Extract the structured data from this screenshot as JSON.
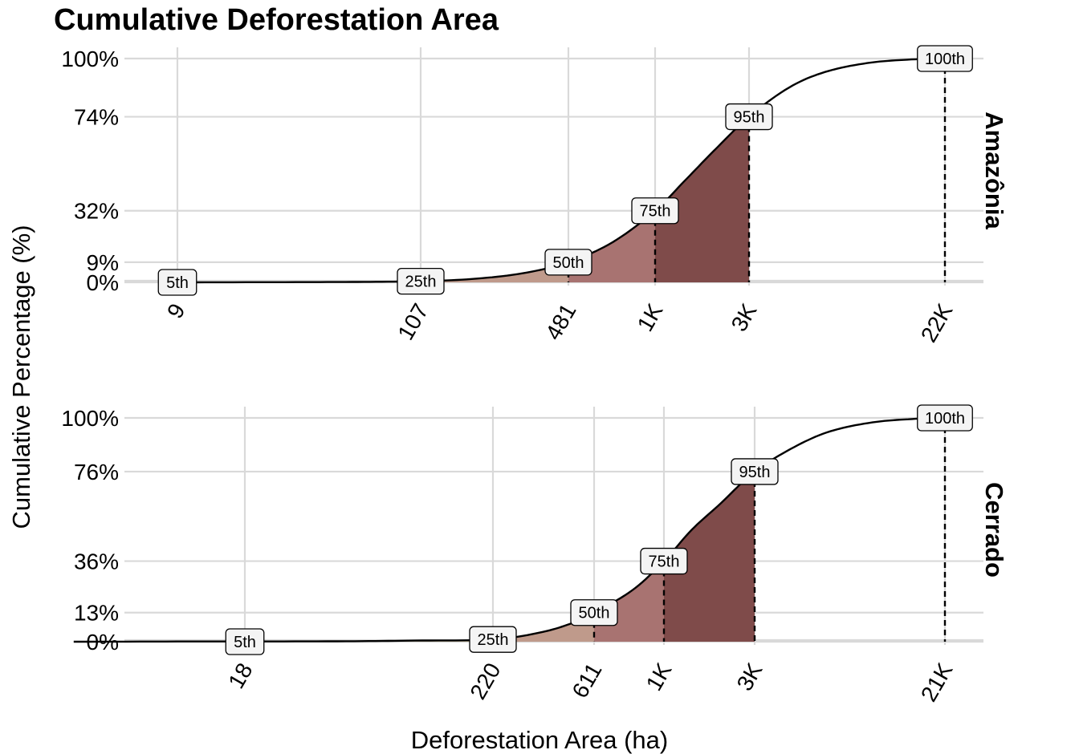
{
  "chart_data": {
    "type": "area",
    "title": "Cumulative Deforestation Area",
    "xlabel": "Deforestation Area (ha)",
    "ylabel": "Cumulative Percentage (%)",
    "x_scale": "log",
    "grid": true,
    "legend": "none",
    "colors": {
      "band_25_50": "#c9bc96",
      "band_50_75": "#bf9a8b",
      "band_75_95": "#a87371",
      "band_95_100": "#7f4b4a",
      "curve": "#000000",
      "label_fill": "#f4f4f4"
    },
    "panels": [
      {
        "name": "Amazônia",
        "x_ticks": [
          9,
          107,
          481,
          1000,
          3000,
          22000
        ],
        "x_tick_labels": [
          "9",
          "107",
          "481",
          "1K",
          "3K",
          "22K"
        ],
        "y_ticks": [
          0,
          9,
          32,
          74,
          100
        ],
        "y_tick_labels": [
          "0%",
          "9%",
          "32%",
          "74%",
          "100%"
        ],
        "percentiles": [
          {
            "label": "5th",
            "x": 9,
            "y": 0
          },
          {
            "label": "25th",
            "x": 107,
            "y": 0.5
          },
          {
            "label": "50th",
            "x": 481,
            "y": 9
          },
          {
            "label": "75th",
            "x": 1000,
            "y": 32
          },
          {
            "label": "95th",
            "x": 3000,
            "y": 74
          },
          {
            "label": "100th",
            "x": 22000,
            "y": 100
          }
        ],
        "curve": [
          [
            9,
            0
          ],
          [
            30,
            0.1
          ],
          [
            60,
            0.2
          ],
          [
            107,
            0.5
          ],
          [
            180,
            1.5
          ],
          [
            300,
            4
          ],
          [
            481,
            9
          ],
          [
            700,
            18
          ],
          [
            1000,
            32
          ],
          [
            1400,
            45
          ],
          [
            2000,
            59
          ],
          [
            3000,
            74
          ],
          [
            4500,
            87
          ],
          [
            6500,
            94
          ],
          [
            10000,
            98
          ],
          [
            15000,
            99.5
          ],
          [
            22000,
            100
          ]
        ]
      },
      {
        "name": "Cerrado",
        "x_ticks": [
          18,
          220,
          611,
          1000,
          3000,
          21000
        ],
        "x_tick_labels": [
          "18",
          "220",
          "611",
          "1K",
          "3K",
          "21K"
        ],
        "y_ticks": [
          0,
          13,
          36,
          76,
          100
        ],
        "y_tick_labels": [
          "0%",
          "13%",
          "36%",
          "76%",
          "100%"
        ],
        "percentiles": [
          {
            "label": "5th",
            "x": 18,
            "y": 0
          },
          {
            "label": "25th",
            "x": 220,
            "y": 1
          },
          {
            "label": "50th",
            "x": 611,
            "y": 13
          },
          {
            "label": "75th",
            "x": 1000,
            "y": 36
          },
          {
            "label": "95th",
            "x": 3000,
            "y": 76
          },
          {
            "label": "100th",
            "x": 21000,
            "y": 100
          }
        ],
        "curve": [
          [
            3.2,
            0
          ],
          [
            10,
            0.1
          ],
          [
            18,
            0.1
          ],
          [
            50,
            0.2
          ],
          [
            100,
            0.5
          ],
          [
            220,
            1
          ],
          [
            350,
            4
          ],
          [
            480,
            8
          ],
          [
            611,
            13
          ],
          [
            800,
            23
          ],
          [
            1000,
            36
          ],
          [
            1400,
            50
          ],
          [
            2000,
            62
          ],
          [
            3000,
            76
          ],
          [
            4500,
            87
          ],
          [
            6500,
            94
          ],
          [
            10000,
            98
          ],
          [
            15000,
            99.5
          ],
          [
            21000,
            100
          ]
        ]
      }
    ]
  }
}
